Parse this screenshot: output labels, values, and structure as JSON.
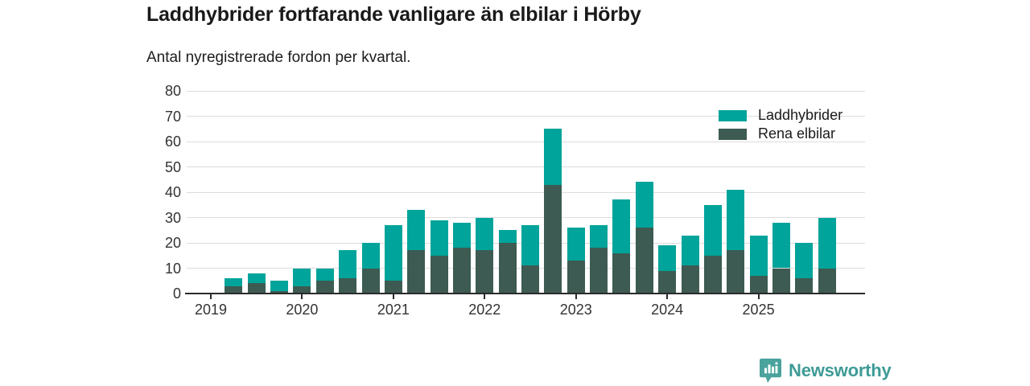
{
  "header": {
    "title": "Laddhybrider fortfarande vanligare än elbilar i Hörby",
    "subtitle": "Antal nyregistrerade fordon per kvartal."
  },
  "legend": {
    "items": [
      {
        "label": "Laddhybrider",
        "color": "#00a49a"
      },
      {
        "label": "Rena elbilar",
        "color": "#3d5b52"
      }
    ]
  },
  "footer": {
    "brand": "Newsworthy"
  },
  "colors": {
    "laddhybrider": "#00a49a",
    "rena_elbilar": "#3d5b52",
    "gridline": "#dcdcdc",
    "axis": "#2b2b2b",
    "tick_label": "#333333",
    "brand_teal": "#3e9b96"
  },
  "chart_data": {
    "type": "bar",
    "stacked": true,
    "title": "Laddhybrider fortfarande vanligare än elbilar i Hörby",
    "subtitle": "Antal nyregistrerade fordon per kvartal.",
    "x": [
      "2019 Q1",
      "2019 Q2",
      "2019 Q3",
      "2019 Q4",
      "2020 Q1",
      "2020 Q2",
      "2020 Q3",
      "2020 Q4",
      "2021 Q1",
      "2021 Q2",
      "2021 Q3",
      "2021 Q4",
      "2022 Q1",
      "2022 Q2",
      "2022 Q3",
      "2022 Q4",
      "2023 Q1",
      "2023 Q2",
      "2023 Q3",
      "2023 Q4",
      "2024 Q1",
      "2024 Q2",
      "2024 Q3",
      "2024 Q4",
      "2025 Q1",
      "2025 Q2",
      "2025 Q3",
      "2025 Q4"
    ],
    "x_tick_labels": [
      "2019",
      "2020",
      "2021",
      "2022",
      "2023",
      "2024",
      "2025"
    ],
    "y_ticks": [
      0,
      10,
      20,
      30,
      40,
      50,
      60,
      70,
      80
    ],
    "ylim": [
      0,
      80
    ],
    "grid": "horizontal",
    "legend_position": "top-right",
    "series": [
      {
        "name": "Laddhybrider",
        "color": "#00a49a",
        "values": [
          0,
          3,
          4,
          4,
          7,
          5,
          11,
          10,
          22,
          16,
          14,
          10,
          13,
          5,
          16,
          22,
          13,
          9,
          21,
          18,
          10,
          12,
          20,
          24,
          16,
          18,
          14,
          20
        ]
      },
      {
        "name": "Rena elbilar",
        "color": "#3d5b52",
        "values": [
          0,
          3,
          4,
          1,
          3,
          5,
          6,
          10,
          5,
          17,
          15,
          18,
          17,
          20,
          11,
          43,
          13,
          18,
          16,
          26,
          9,
          11,
          15,
          17,
          7,
          10,
          6,
          10
        ]
      }
    ],
    "totals": [
      0,
      6,
      8,
      5,
      10,
      10,
      17,
      20,
      27,
      33,
      29,
      28,
      30,
      25,
      27,
      65,
      26,
      27,
      37,
      44,
      19,
      23,
      35,
      41,
      23,
      28,
      20,
      30
    ]
  }
}
